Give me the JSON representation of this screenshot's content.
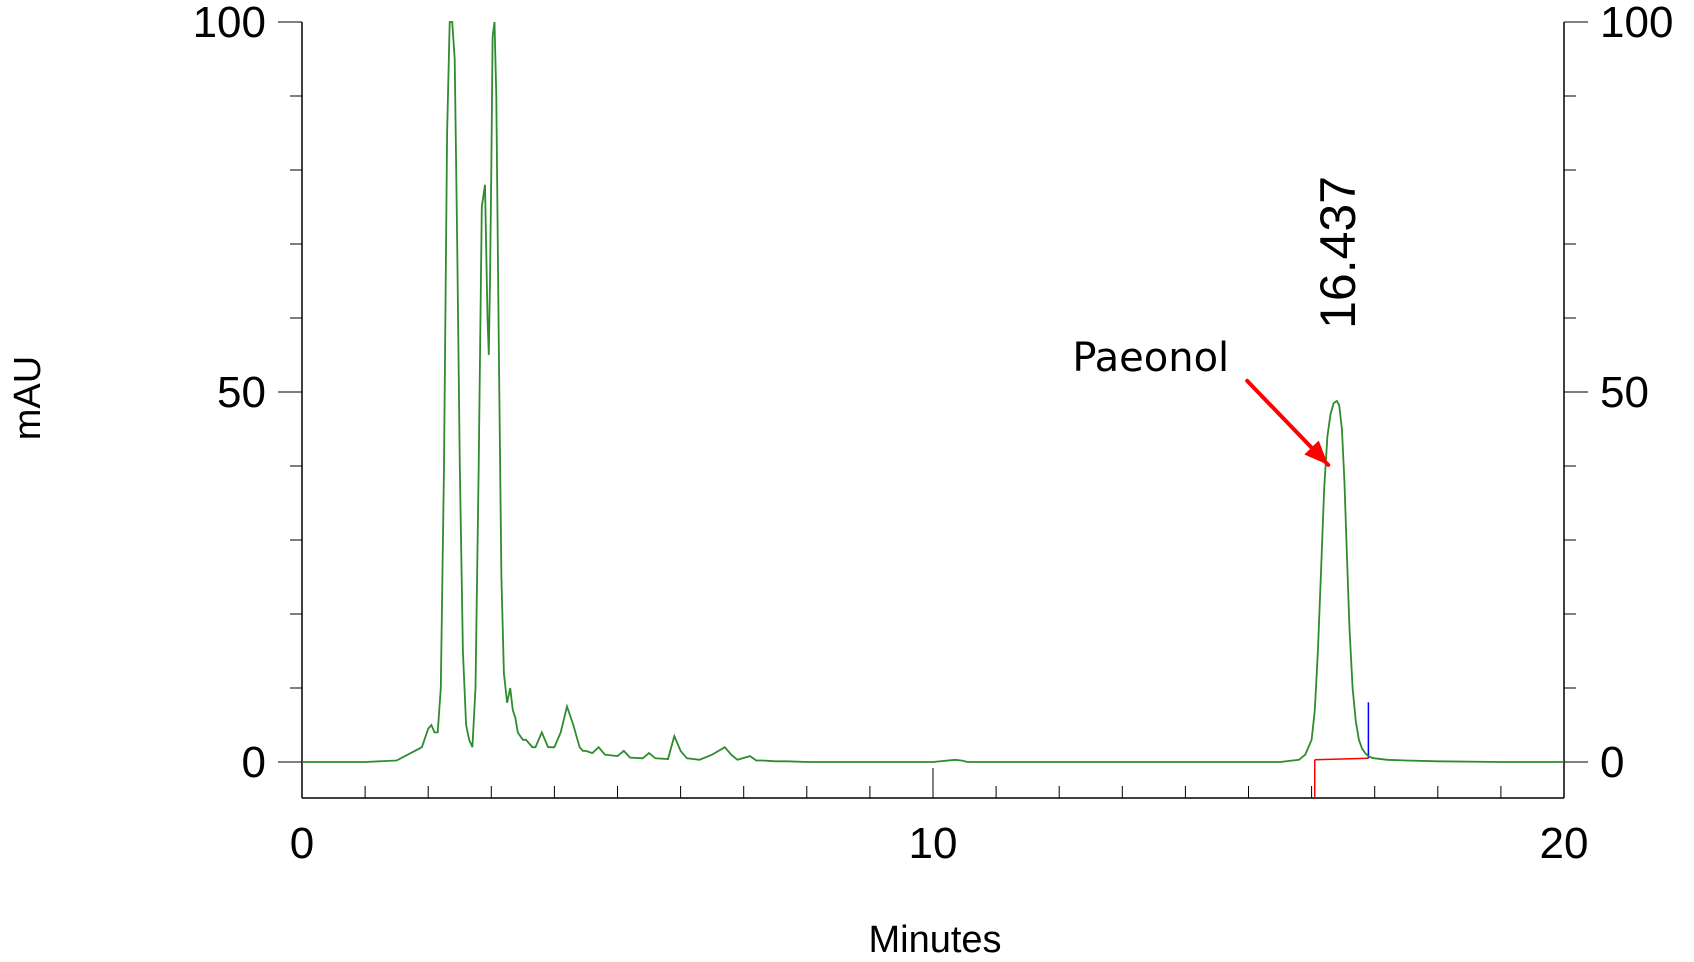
{
  "chart_data": {
    "type": "line",
    "xlabel": "Minutes",
    "ylabel": "mAU",
    "xlim": [
      0,
      20
    ],
    "ylim": [
      -5,
      100
    ],
    "x_ticks": [
      0,
      10,
      20
    ],
    "y_ticks": [
      0,
      50,
      100
    ],
    "grid": false,
    "series": [
      {
        "color": "#2e8b2e",
        "x": [
          0,
          0.5,
          1,
          1.5,
          1.9,
          2.0,
          2.05,
          2.1,
          2.15,
          2.2,
          2.25,
          2.3,
          2.34,
          2.38,
          2.42,
          2.46,
          2.5,
          2.55,
          2.6,
          2.65,
          2.7,
          2.75,
          2.8,
          2.85,
          2.9,
          2.94,
          2.96,
          2.98,
          3.0,
          3.02,
          3.05,
          3.08,
          3.12,
          3.16,
          3.2,
          3.25,
          3.3,
          3.34,
          3.38,
          3.42,
          3.46,
          3.5,
          3.55,
          3.6,
          3.65,
          3.7,
          3.75,
          3.8,
          3.9,
          4.0,
          4.1,
          4.2,
          4.3,
          4.4,
          4.45,
          4.5,
          4.6,
          4.7,
          4.8,
          5.0,
          5.1,
          5.2,
          5.4,
          5.5,
          5.6,
          5.8,
          5.9,
          6.0,
          6.1,
          6.2,
          6.3,
          6.5,
          6.7,
          6.8,
          6.9,
          7.1,
          7.2,
          7.3,
          7.5,
          7.7,
          8.0,
          9.0,
          10.0,
          10.35,
          10.45,
          10.55,
          11,
          12,
          13,
          14,
          15,
          15.5,
          15.8,
          15.9,
          16.0,
          16.05,
          16.1,
          16.15,
          16.2,
          16.25,
          16.3,
          16.35,
          16.4,
          16.437,
          16.48,
          16.52,
          16.56,
          16.6,
          16.65,
          16.7,
          16.75,
          16.8,
          16.85,
          16.9,
          16.95,
          17.0,
          17.2,
          17.5,
          18,
          19,
          20
        ],
        "y": [
          0,
          0,
          0,
          0.2,
          2,
          4.5,
          5,
          4,
          4,
          10,
          40,
          85,
          100,
          100,
          95,
          70,
          40,
          15,
          5,
          3,
          2,
          10,
          40,
          75,
          78,
          60,
          55,
          65,
          80,
          98,
          100,
          90,
          55,
          25,
          12,
          8,
          10,
          7,
          6,
          4,
          3.5,
          3,
          3,
          2.5,
          2,
          2,
          3,
          4,
          2,
          2,
          4,
          7.5,
          5,
          2,
          1.5,
          1.5,
          1.2,
          2,
          1,
          0.8,
          1.5,
          0.6,
          0.5,
          1.2,
          0.5,
          0.4,
          3.5,
          1.5,
          0.5,
          0.4,
          0.3,
          1,
          2,
          1,
          0.3,
          0.8,
          0.2,
          0.2,
          0.1,
          0.1,
          0,
          0,
          0,
          0.3,
          0.2,
          0,
          0,
          0,
          0,
          0,
          0,
          0,
          0.3,
          1,
          3,
          7,
          15,
          26,
          37,
          44,
          47,
          48.5,
          48.8,
          48.2,
          45,
          38,
          28,
          18,
          10,
          5.5,
          3,
          1.8,
          1.2,
          0.8,
          0.6,
          0.5,
          0.3,
          0.2,
          0.1,
          0,
          0
        ]
      }
    ],
    "peak_label": {
      "text": "16.437",
      "x": 16.437,
      "y": 48.8
    },
    "annotations": [
      {
        "text": "Paeonol",
        "x": 16.437,
        "y": 48.8,
        "arrow_color": "#ff0000"
      }
    ],
    "baseline": {
      "color": "#ff0000",
      "x_start": 16.05,
      "x_end": 16.9,
      "y_start": 0.3,
      "y_end": 0.5
    },
    "integration_markers": [
      {
        "x": 16.05,
        "color": "#ff0000"
      },
      {
        "x": 16.9,
        "color": "#0000ff"
      }
    ]
  }
}
